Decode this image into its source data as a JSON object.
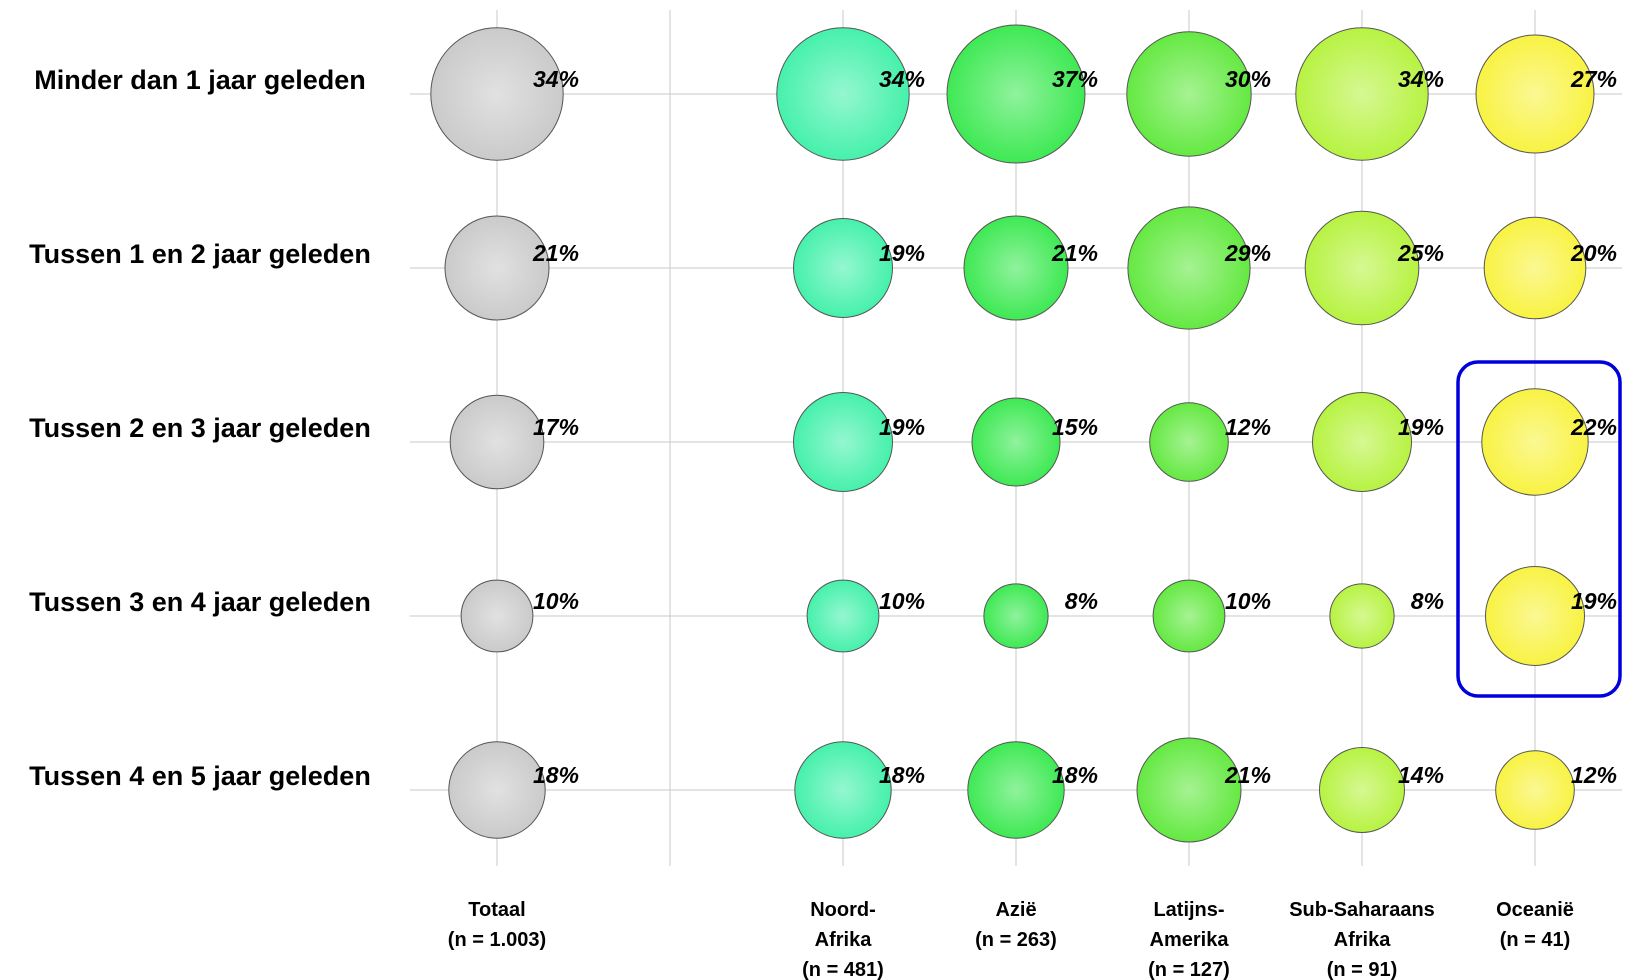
{
  "chart_data": {
    "type": "bubble-matrix",
    "rows": [
      "Minder dan 1 jaar geleden",
      "Tussen 1 en 2 jaar geleden",
      "Tussen 2 en 3 jaar geleden",
      "Tussen 3 en 4 jaar geleden",
      "Tussen 4 en 5 jaar geleden"
    ],
    "columns": [
      {
        "lines": [
          "Totaal",
          "(n = 1.003)"
        ],
        "color": "#c8c8c8",
        "values": [
          34,
          21,
          17,
          10,
          18
        ]
      },
      {
        "lines": [
          "Noord-",
          "Afrika",
          "(n = 481)"
        ],
        "color": "#3ef0a8",
        "values": [
          34,
          19,
          19,
          10,
          18
        ]
      },
      {
        "lines": [
          "Azië",
          "(n = 263)"
        ],
        "color": "#36e84c",
        "values": [
          37,
          21,
          15,
          8,
          18
        ]
      },
      {
        "lines": [
          "Latijns-",
          "Amerika",
          "(n = 127)"
        ],
        "color": "#5ee83a",
        "values": [
          30,
          29,
          12,
          10,
          21
        ]
      },
      {
        "lines": [
          "Sub-Saharaans",
          "Afrika",
          "(n = 91)"
        ],
        "color": "#b4f23a",
        "values": [
          34,
          25,
          19,
          8,
          14
        ]
      },
      {
        "lines": [
          "Oceanië",
          "(n = 41)"
        ],
        "color": "#f8f23a",
        "values": [
          27,
          20,
          22,
          19,
          12
        ]
      }
    ],
    "unit": "%",
    "highlight": {
      "column": "Oceanië",
      "rows": [
        "Tussen 2 en 3 jaar geleden",
        "Tussen 3 en 4 jaar geleden"
      ],
      "color": "#0000dd"
    }
  }
}
